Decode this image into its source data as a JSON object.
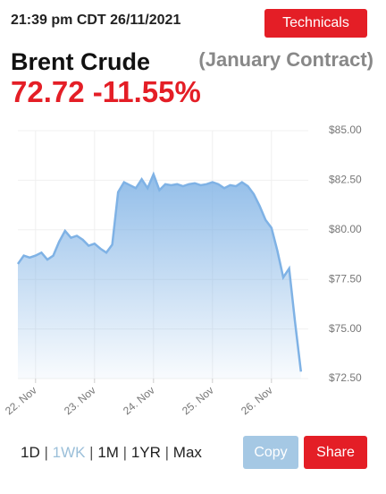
{
  "header": {
    "timestamp": "21:39 pm CDT 26/11/2021",
    "button": "Technicals",
    "name": "Brent Crude",
    "contract": "(January Contract)",
    "price": "72.72",
    "change": "-11.55%"
  },
  "chart_data": {
    "type": "area",
    "color": "#7fb2e5",
    "categories": [
      null,
      null,
      null,
      "22. Nov",
      null,
      null,
      null,
      null,
      null,
      null,
      null,
      null,
      null,
      "23. Nov",
      null,
      null,
      null,
      null,
      null,
      null,
      null,
      null,
      null,
      "24. Nov",
      null,
      null,
      null,
      null,
      null,
      null,
      null,
      null,
      null,
      "25. Nov",
      null,
      null,
      null,
      null,
      null,
      null,
      null,
      null,
      null,
      "26. Nov",
      null,
      null,
      null,
      null,
      null
    ],
    "values": [
      78.28,
      78.7,
      78.6,
      78.7,
      78.85,
      78.5,
      78.7,
      79.4,
      79.95,
      79.6,
      79.7,
      79.5,
      79.2,
      79.3,
      79.05,
      78.85,
      79.25,
      81.9,
      82.4,
      82.25,
      82.1,
      82.55,
      82.1,
      82.8,
      82.0,
      82.3,
      82.25,
      82.3,
      82.2,
      82.3,
      82.35,
      82.25,
      82.3,
      82.4,
      82.3,
      82.1,
      82.25,
      82.2,
      82.4,
      82.2,
      81.8,
      81.2,
      80.5,
      80.1,
      78.95,
      77.6,
      78.05,
      75.35,
      72.85
    ],
    "ylim": [
      72.5,
      85
    ],
    "yticks": [
      {
        "value": 72.5,
        "label": "$72.50"
      },
      {
        "value": 75,
        "label": "$75.00"
      },
      {
        "value": 77.5,
        "label": "$77.50"
      },
      {
        "value": 80,
        "label": "$80.00"
      },
      {
        "value": 82.5,
        "label": "$82.50"
      },
      {
        "value": 85,
        "label": "$85.00"
      }
    ],
    "grid": true
  },
  "controls": {
    "ranges": [
      "1D",
      "1WK",
      "1M",
      "1YR",
      "Max"
    ],
    "selected": 1,
    "copy": "Copy",
    "share": "Share"
  }
}
